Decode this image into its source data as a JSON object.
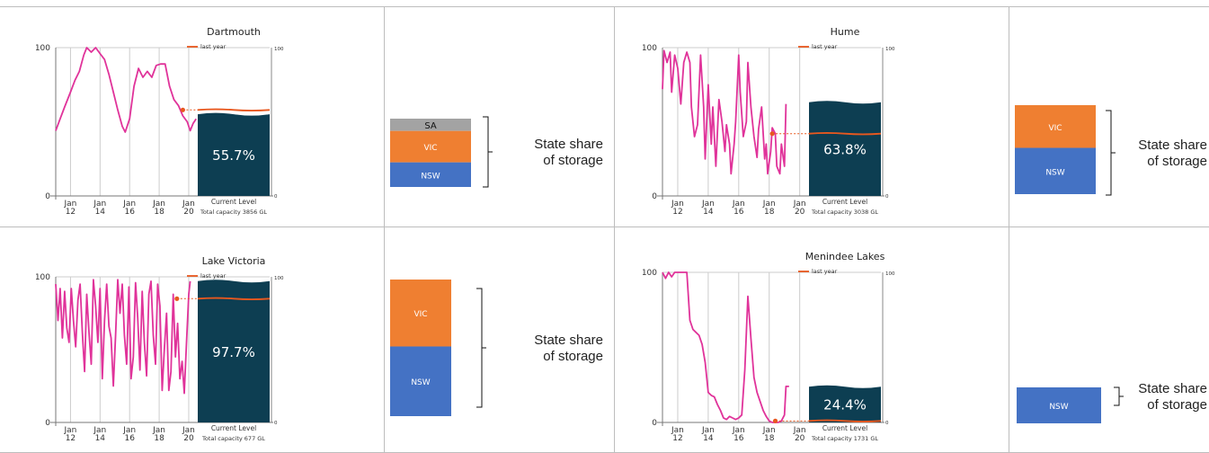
{
  "colors": {
    "line": "#e0339a",
    "panel": "#0d3e52",
    "last_year": "#e8581f",
    "grid": "#cccccc",
    "sa": "#a3a3a3",
    "vic": "#ef7f31",
    "nsw": "#4472c4"
  },
  "chart_data": [
    {
      "type": "line",
      "title": "Dartmouth",
      "legend": "last year",
      "x_ticks": [
        "Jan 12",
        "Jan 14",
        "Jan 16",
        "Jan 18",
        "Jan 20"
      ],
      "ylim": [
        0,
        100
      ],
      "left_ticks": [
        "100",
        "0"
      ],
      "right_ticks": [
        "100",
        "0"
      ],
      "current_level_percent": 55.7,
      "current_level_label": "55.7%",
      "last_year_percent": 58,
      "panel_label": "Current Level",
      "capacity_label": "Total capacity 3856 GL",
      "series": [
        {
          "values": [
            [
              2011.0,
              44
            ],
            [
              2011.3,
              52
            ],
            [
              2011.6,
              60
            ],
            [
              2012.0,
              70
            ],
            [
              2012.3,
              78
            ],
            [
              2012.6,
              84
            ],
            [
              2012.9,
              95
            ],
            [
              2013.1,
              100
            ],
            [
              2013.4,
              97
            ],
            [
              2013.7,
              100
            ],
            [
              2014.0,
              96
            ],
            [
              2014.3,
              92
            ],
            [
              2014.6,
              82
            ],
            [
              2014.9,
              70
            ],
            [
              2015.2,
              58
            ],
            [
              2015.5,
              47
            ],
            [
              2015.7,
              43
            ],
            [
              2016.0,
              52
            ],
            [
              2016.3,
              74
            ],
            [
              2016.6,
              86
            ],
            [
              2016.9,
              80
            ],
            [
              2017.2,
              84
            ],
            [
              2017.5,
              80
            ],
            [
              2017.8,
              88
            ],
            [
              2018.1,
              89
            ],
            [
              2018.4,
              89
            ],
            [
              2018.7,
              74
            ],
            [
              2019.0,
              65
            ],
            [
              2019.3,
              61
            ],
            [
              2019.6,
              54
            ],
            [
              2019.9,
              50
            ],
            [
              2020.1,
              44
            ],
            [
              2020.3,
              49
            ],
            [
              2020.5,
              52
            ]
          ]
        }
      ]
    },
    {
      "type": "bar",
      "title": "State share of storage",
      "categories": [
        "SA",
        "VIC",
        "NSW"
      ],
      "values": [
        9,
        23,
        18
      ]
    },
    {
      "type": "line",
      "title": "Hume",
      "legend": "last year",
      "x_ticks": [
        "Jan 12",
        "Jan 14",
        "Jan 16",
        "Jan 18",
        "Jan 20"
      ],
      "ylim": [
        0,
        100
      ],
      "left_ticks": [
        "100",
        "0"
      ],
      "right_ticks": [
        "100",
        "0"
      ],
      "current_level_percent": 63.8,
      "current_level_label": "63.8%",
      "last_year_percent": 42,
      "panel_label": "Current Level",
      "capacity_label": "Total capacity 3038 GL",
      "series": [
        {
          "values": [
            [
              2011.0,
              72
            ],
            [
              2011.1,
              98
            ],
            [
              2011.3,
              90
            ],
            [
              2011.5,
              97
            ],
            [
              2011.6,
              70
            ],
            [
              2011.8,
              95
            ],
            [
              2012.0,
              86
            ],
            [
              2012.2,
              62
            ],
            [
              2012.4,
              90
            ],
            [
              2012.6,
              97
            ],
            [
              2012.8,
              90
            ],
            [
              2012.9,
              60
            ],
            [
              2013.1,
              40
            ],
            [
              2013.3,
              48
            ],
            [
              2013.5,
              95
            ],
            [
              2013.7,
              60
            ],
            [
              2013.8,
              25
            ],
            [
              2013.9,
              50
            ],
            [
              2014.0,
              75
            ],
            [
              2014.2,
              35
            ],
            [
              2014.3,
              60
            ],
            [
              2014.5,
              20
            ],
            [
              2014.7,
              65
            ],
            [
              2014.9,
              50
            ],
            [
              2015.1,
              30
            ],
            [
              2015.2,
              48
            ],
            [
              2015.4,
              35
            ],
            [
              2015.5,
              15
            ],
            [
              2015.7,
              35
            ],
            [
              2015.8,
              50
            ],
            [
              2016.0,
              95
            ],
            [
              2016.1,
              70
            ],
            [
              2016.3,
              40
            ],
            [
              2016.5,
              50
            ],
            [
              2016.6,
              90
            ],
            [
              2016.8,
              60
            ],
            [
              2017.0,
              40
            ],
            [
              2017.2,
              26
            ],
            [
              2017.3,
              45
            ],
            [
              2017.5,
              60
            ],
            [
              2017.7,
              25
            ],
            [
              2017.8,
              35
            ],
            [
              2017.9,
              15
            ],
            [
              2018.1,
              30
            ],
            [
              2018.2,
              46
            ],
            [
              2018.4,
              42
            ],
            [
              2018.5,
              20
            ],
            [
              2018.7,
              15
            ],
            [
              2018.8,
              35
            ],
            [
              2019.0,
              20
            ],
            [
              2019.1,
              62
            ]
          ]
        }
      ]
    },
    {
      "type": "bar",
      "title": "State share of storage",
      "categories": [
        "VIC",
        "NSW"
      ],
      "values": [
        48,
        52
      ]
    },
    {
      "type": "line",
      "title": "Lake Victoria",
      "legend": "last year",
      "x_ticks": [
        "Jan 12",
        "Jan 14",
        "Jan 16",
        "Jan 18",
        "Jan 20"
      ],
      "ylim": [
        0,
        100
      ],
      "left_ticks": [
        "100",
        "0"
      ],
      "right_ticks": [
        "100",
        "0"
      ],
      "current_level_percent": 97.7,
      "current_level_label": "97.7%",
      "last_year_percent": 85,
      "panel_label": "Current Level",
      "capacity_label": "Total capacity 677 GL",
      "series": [
        {
          "values": [
            [
              2011.0,
              95
            ],
            [
              2011.15,
              70
            ],
            [
              2011.3,
              92
            ],
            [
              2011.45,
              58
            ],
            [
              2011.6,
              90
            ],
            [
              2011.75,
              65
            ],
            [
              2011.9,
              55
            ],
            [
              2012.05,
              92
            ],
            [
              2012.2,
              70
            ],
            [
              2012.35,
              52
            ],
            [
              2012.5,
              84
            ],
            [
              2012.65,
              95
            ],
            [
              2012.8,
              62
            ],
            [
              2012.95,
              35
            ],
            [
              2013.1,
              88
            ],
            [
              2013.25,
              62
            ],
            [
              2013.4,
              40
            ],
            [
              2013.55,
              98
            ],
            [
              2013.7,
              80
            ],
            [
              2013.85,
              55
            ],
            [
              2014.0,
              92
            ],
            [
              2014.15,
              30
            ],
            [
              2014.3,
              70
            ],
            [
              2014.45,
              95
            ],
            [
              2014.6,
              66
            ],
            [
              2014.75,
              58
            ],
            [
              2014.9,
              25
            ],
            [
              2015.05,
              60
            ],
            [
              2015.2,
              98
            ],
            [
              2015.35,
              75
            ],
            [
              2015.5,
              95
            ],
            [
              2015.65,
              60
            ],
            [
              2015.8,
              40
            ],
            [
              2015.95,
              93
            ],
            [
              2016.1,
              30
            ],
            [
              2016.25,
              45
            ],
            [
              2016.4,
              96
            ],
            [
              2016.55,
              72
            ],
            [
              2016.7,
              36
            ],
            [
              2016.85,
              90
            ],
            [
              2017.0,
              55
            ],
            [
              2017.15,
              32
            ],
            [
              2017.3,
              88
            ],
            [
              2017.45,
              97
            ],
            [
              2017.6,
              60
            ],
            [
              2017.75,
              40
            ],
            [
              2017.9,
              95
            ],
            [
              2018.05,
              80
            ],
            [
              2018.2,
              22
            ],
            [
              2018.35,
              50
            ],
            [
              2018.5,
              75
            ],
            [
              2018.65,
              22
            ],
            [
              2018.8,
              35
            ],
            [
              2018.95,
              88
            ],
            [
              2019.1,
              45
            ],
            [
              2019.25,
              68
            ],
            [
              2019.4,
              30
            ],
            [
              2019.55,
              42
            ],
            [
              2019.7,
              20
            ],
            [
              2019.85,
              55
            ],
            [
              2020.0,
              88
            ],
            [
              2020.1,
              97
            ]
          ]
        }
      ]
    },
    {
      "type": "bar",
      "title": "State share of storage",
      "categories": [
        "VIC",
        "NSW"
      ],
      "values": [
        49,
        51
      ]
    },
    {
      "type": "line",
      "title": "Menindee Lakes",
      "legend": "last year",
      "x_ticks": [
        "Jan 12",
        "Jan 14",
        "Jan 16",
        "Jan 18",
        "Jan 20"
      ],
      "ylim": [
        0,
        100
      ],
      "left_ticks": [
        "100",
        "0"
      ],
      "right_ticks": [
        "100",
        "0"
      ],
      "current_level_percent": 24.4,
      "current_level_label": "24.4%",
      "last_year_percent": 1,
      "panel_label": "Current Level",
      "capacity_label": "Total capacity 1731 GL",
      "series": [
        {
          "values": [
            [
              2011.0,
              100
            ],
            [
              2011.2,
              96
            ],
            [
              2011.4,
              100
            ],
            [
              2011.6,
              97
            ],
            [
              2011.8,
              100
            ],
            [
              2012.0,
              100
            ],
            [
              2012.2,
              100
            ],
            [
              2012.4,
              100
            ],
            [
              2012.6,
              100
            ],
            [
              2012.8,
              68
            ],
            [
              2013.0,
              62
            ],
            [
              2013.2,
              60
            ],
            [
              2013.4,
              58
            ],
            [
              2013.6,
              52
            ],
            [
              2013.8,
              40
            ],
            [
              2014.0,
              20
            ],
            [
              2014.2,
              18
            ],
            [
              2014.4,
              17
            ],
            [
              2014.6,
              12
            ],
            [
              2014.8,
              8
            ],
            [
              2015.0,
              3
            ],
            [
              2015.2,
              2
            ],
            [
              2015.4,
              4
            ],
            [
              2015.6,
              3
            ],
            [
              2015.8,
              2
            ],
            [
              2016.0,
              3
            ],
            [
              2016.2,
              5
            ],
            [
              2016.4,
              35
            ],
            [
              2016.6,
              84
            ],
            [
              2016.8,
              56
            ],
            [
              2017.0,
              30
            ],
            [
              2017.2,
              20
            ],
            [
              2017.4,
              14
            ],
            [
              2017.6,
              8
            ],
            [
              2017.8,
              4
            ],
            [
              2018.0,
              1
            ],
            [
              2018.2,
              0
            ],
            [
              2018.4,
              0
            ],
            [
              2018.6,
              0
            ],
            [
              2018.8,
              1
            ],
            [
              2019.0,
              5
            ],
            [
              2019.1,
              24
            ],
            [
              2019.3,
              24
            ]
          ]
        }
      ]
    },
    {
      "type": "bar",
      "title": "State share of storage",
      "categories": [
        "NSW"
      ],
      "values": [
        100
      ]
    }
  ],
  "share_label_line1": "State share",
  "share_label_line2": "of storage"
}
